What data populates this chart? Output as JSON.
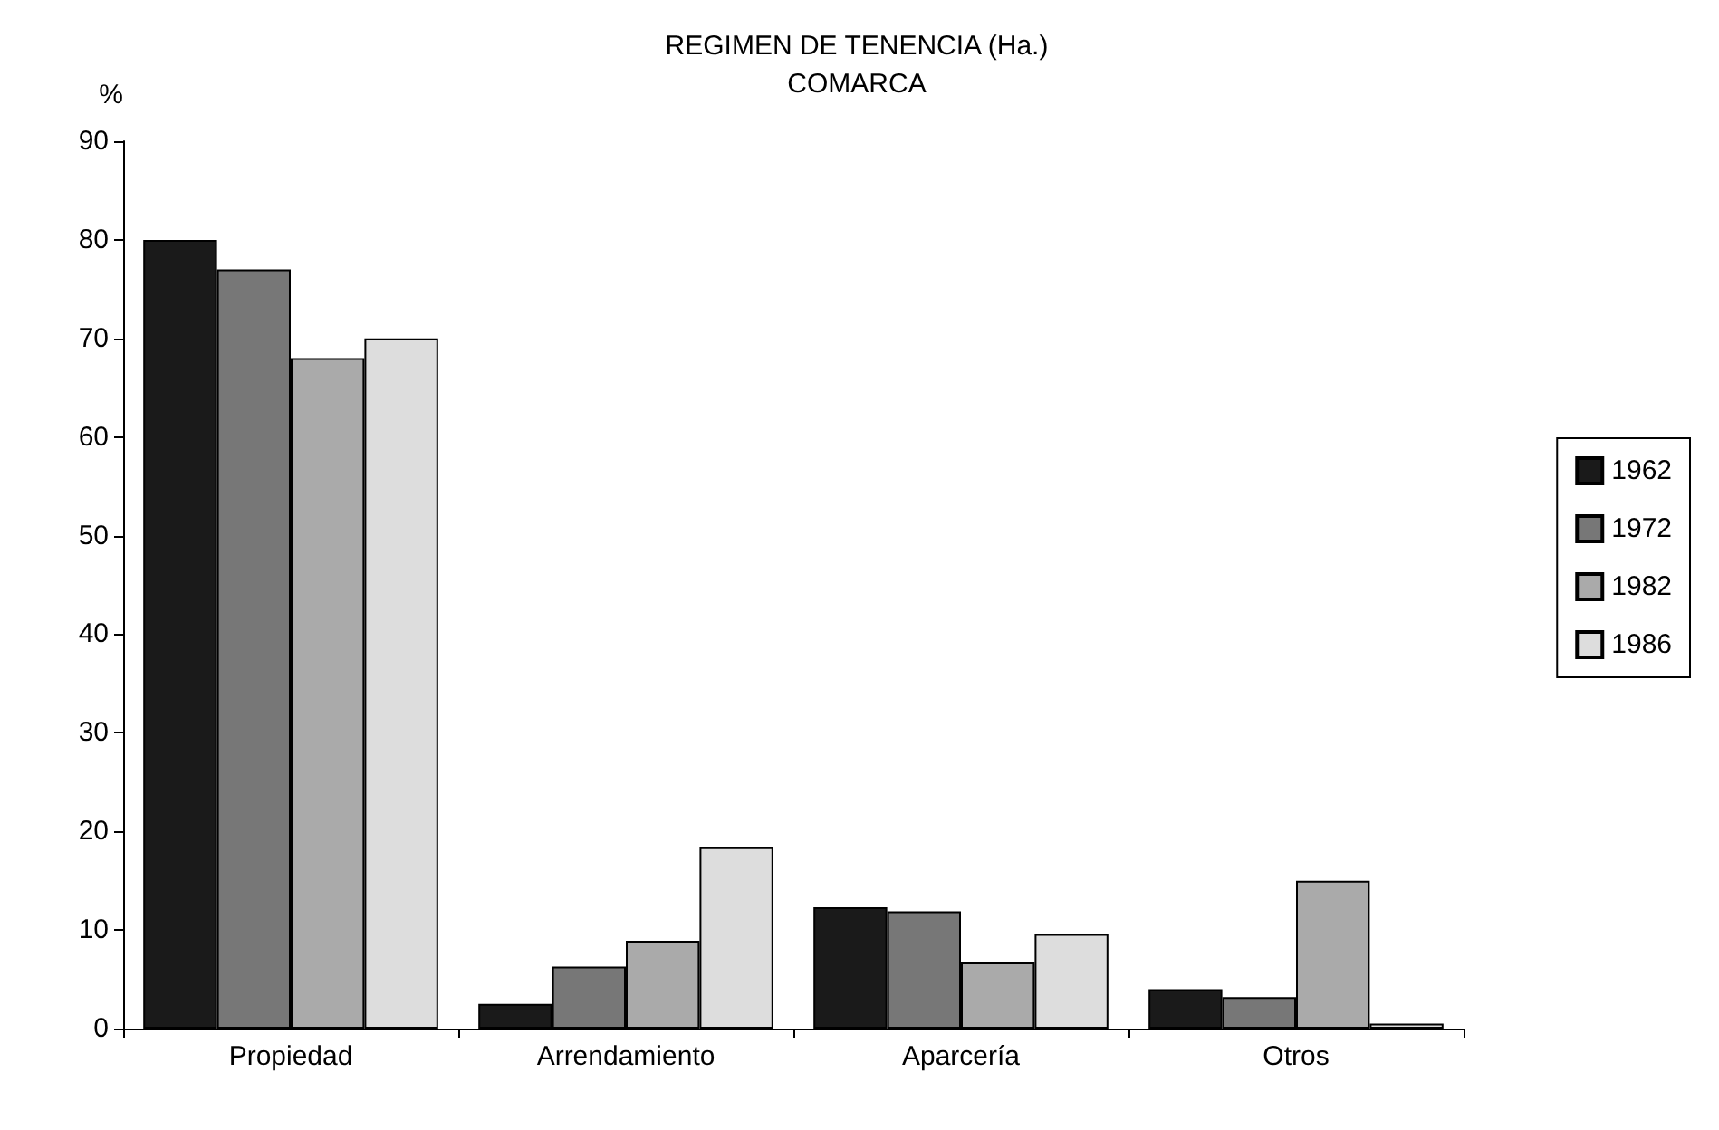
{
  "chart_data": {
    "type": "bar",
    "title": "REGIMEN DE TENENCIA (Ha.)",
    "subtitle": "COMARCA",
    "ylabel": "%",
    "categories": [
      "Propiedad",
      "Arrendamiento",
      "Aparcería",
      "Otros"
    ],
    "series": [
      {
        "name": "1962",
        "color": "#1a1a1a",
        "values": [
          80,
          2.5,
          12.3,
          4
        ]
      },
      {
        "name": "1972",
        "color": "#777777",
        "values": [
          77,
          6.3,
          11.9,
          3.2
        ]
      },
      {
        "name": "1982",
        "color": "#aaaaaa",
        "values": [
          68,
          8.9,
          6.7,
          15
        ]
      },
      {
        "name": "1986",
        "color": "#dddddd",
        "values": [
          70,
          18.4,
          9.6,
          0.5
        ]
      }
    ],
    "ylim": [
      0,
      90
    ],
    "yticks": [
      0,
      10,
      20,
      30,
      40,
      50,
      60,
      70,
      80,
      90
    ],
    "grid": false,
    "legend": "right"
  }
}
